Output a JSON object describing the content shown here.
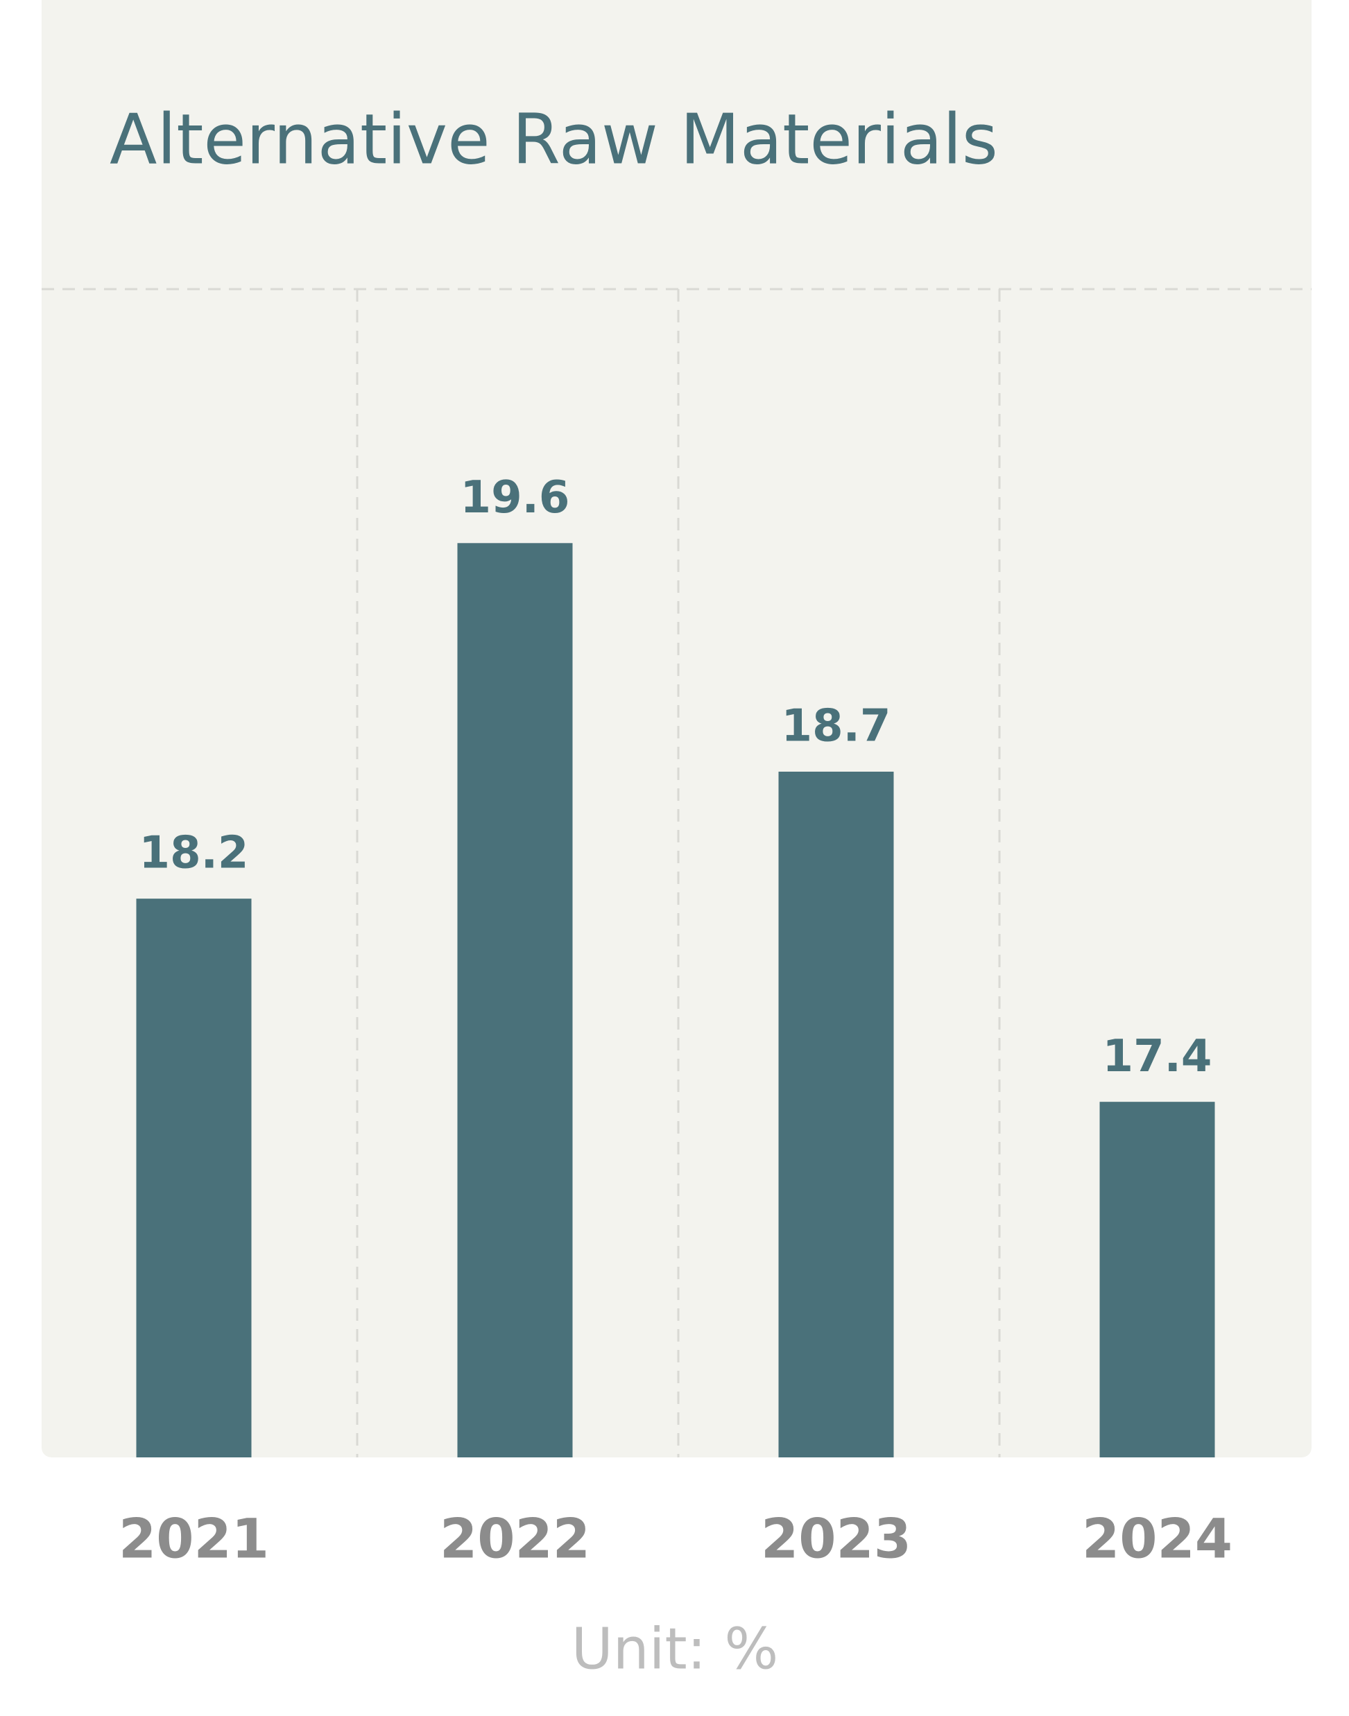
{
  "chart_data": {
    "type": "bar",
    "title": "Alternative Raw Materials",
    "categories": [
      "2021",
      "2022",
      "2023",
      "2024"
    ],
    "values": [
      18.2,
      19.6,
      18.7,
      17.4
    ],
    "color": "#4a717a",
    "ylim": [
      16,
      20.6
    ],
    "unit_label": "Unit: %"
  }
}
